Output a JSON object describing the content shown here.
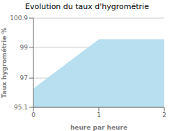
{
  "chart_data": {
    "type": "area",
    "title": "Evolution du taux d'hygrométrie",
    "xlabel": "heure par heure",
    "ylabel": "Taux hygrométrie %",
    "x": [
      0,
      1,
      2
    ],
    "values": [
      96.3,
      99.5,
      99.5
    ],
    "color": "#b8dff0",
    "xlim": [
      0,
      2
    ],
    "xticks": [
      0,
      1,
      2
    ],
    "ylim": [
      95.1,
      100.9
    ],
    "yticks": [
      95.1,
      97.0,
      99.0,
      100.9
    ],
    "grid": true
  }
}
